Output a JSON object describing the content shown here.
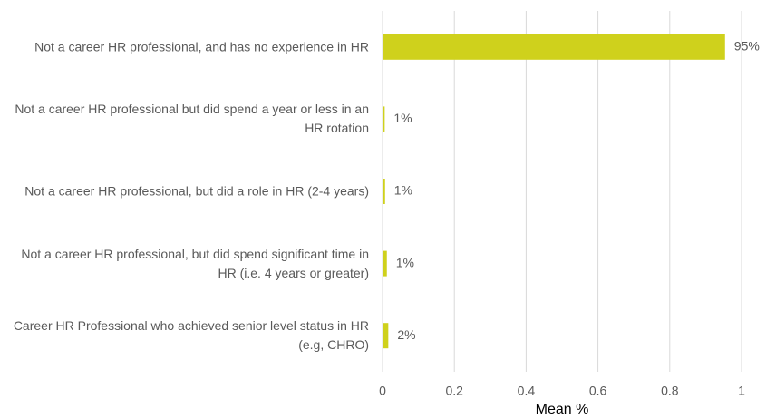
{
  "chart_data": {
    "type": "bar",
    "orientation": "horizontal",
    "categories": [
      "Not a career HR professional, and has no experience in HR",
      "Not a career HR professional but did spend a year or less in an HR rotation",
      "Not a career HR professional, but did a role in HR (2-4 years)",
      "Not a career HR professional, but did spend significant time in HR (i.e. 4 years or greater)",
      "Career HR Professional who achieved senior level status in HR (e.g, CHRO)"
    ],
    "values": [
      0.954,
      0.006,
      0.007,
      0.012,
      0.016
    ],
    "value_labels": [
      "95%",
      "1%",
      "1%",
      "1%",
      "2%"
    ],
    "color": "#cfd11c",
    "xlabel": "Mean %",
    "xlim": [
      0,
      1
    ],
    "xticks": [
      0,
      0.2,
      0.4,
      0.6,
      0.8,
      1
    ],
    "grid": true
  }
}
